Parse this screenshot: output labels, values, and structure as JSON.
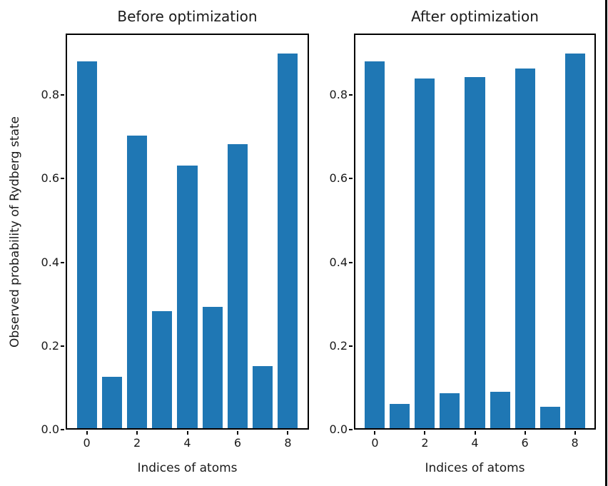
{
  "figure": {
    "background": "#ffffff",
    "window_edge_color": "#000000",
    "text_color": "#1a1a1a"
  },
  "chart_data": [
    {
      "type": "bar",
      "title": "Before optimization",
      "xlabel": "Indices of atoms",
      "ylabel": "Observed probability of Rydberg state",
      "categories": [
        0,
        1,
        2,
        3,
        4,
        5,
        6,
        7,
        8
      ],
      "values": [
        0.881,
        0.126,
        0.703,
        0.283,
        0.631,
        0.294,
        0.683,
        0.152,
        0.899
      ],
      "bar_color": "#1f77b4",
      "bar_width": 0.8,
      "ylim": [
        0,
        0.947
      ],
      "xlim": [
        -0.84,
        8.84
      ],
      "yticks": [
        {
          "label": "0.0",
          "value": 0.0
        },
        {
          "label": "0.2",
          "value": 0.2
        },
        {
          "label": "0.4",
          "value": 0.4
        },
        {
          "label": "0.6",
          "value": 0.6
        },
        {
          "label": "0.8",
          "value": 0.8
        }
      ],
      "xticks": [
        {
          "label": "0",
          "pos": 0
        },
        {
          "label": "2",
          "pos": 2
        },
        {
          "label": "4",
          "pos": 4
        },
        {
          "label": "6",
          "pos": 6
        },
        {
          "label": "8",
          "pos": 8
        }
      ],
      "grid": false,
      "legend": null
    },
    {
      "type": "bar",
      "title": "After optimization",
      "xlabel": "Indices of atoms",
      "ylabel": null,
      "categories": [
        0,
        1,
        2,
        3,
        4,
        5,
        6,
        7,
        8
      ],
      "values": [
        0.881,
        0.061,
        0.84,
        0.087,
        0.843,
        0.09,
        0.863,
        0.055,
        0.899
      ],
      "bar_color": "#1f77b4",
      "bar_width": 0.8,
      "ylim": [
        0,
        0.947
      ],
      "xlim": [
        -0.84,
        8.84
      ],
      "yticks": [
        {
          "label": "0.0",
          "value": 0.0
        },
        {
          "label": "0.2",
          "value": 0.2
        },
        {
          "label": "0.4",
          "value": 0.4
        },
        {
          "label": "0.6",
          "value": 0.6
        },
        {
          "label": "0.8",
          "value": 0.8
        }
      ],
      "xticks": [
        {
          "label": "0",
          "pos": 0
        },
        {
          "label": "2",
          "pos": 2
        },
        {
          "label": "4",
          "pos": 4
        },
        {
          "label": "6",
          "pos": 6
        },
        {
          "label": "8",
          "pos": 8
        }
      ],
      "grid": false,
      "legend": null
    }
  ]
}
